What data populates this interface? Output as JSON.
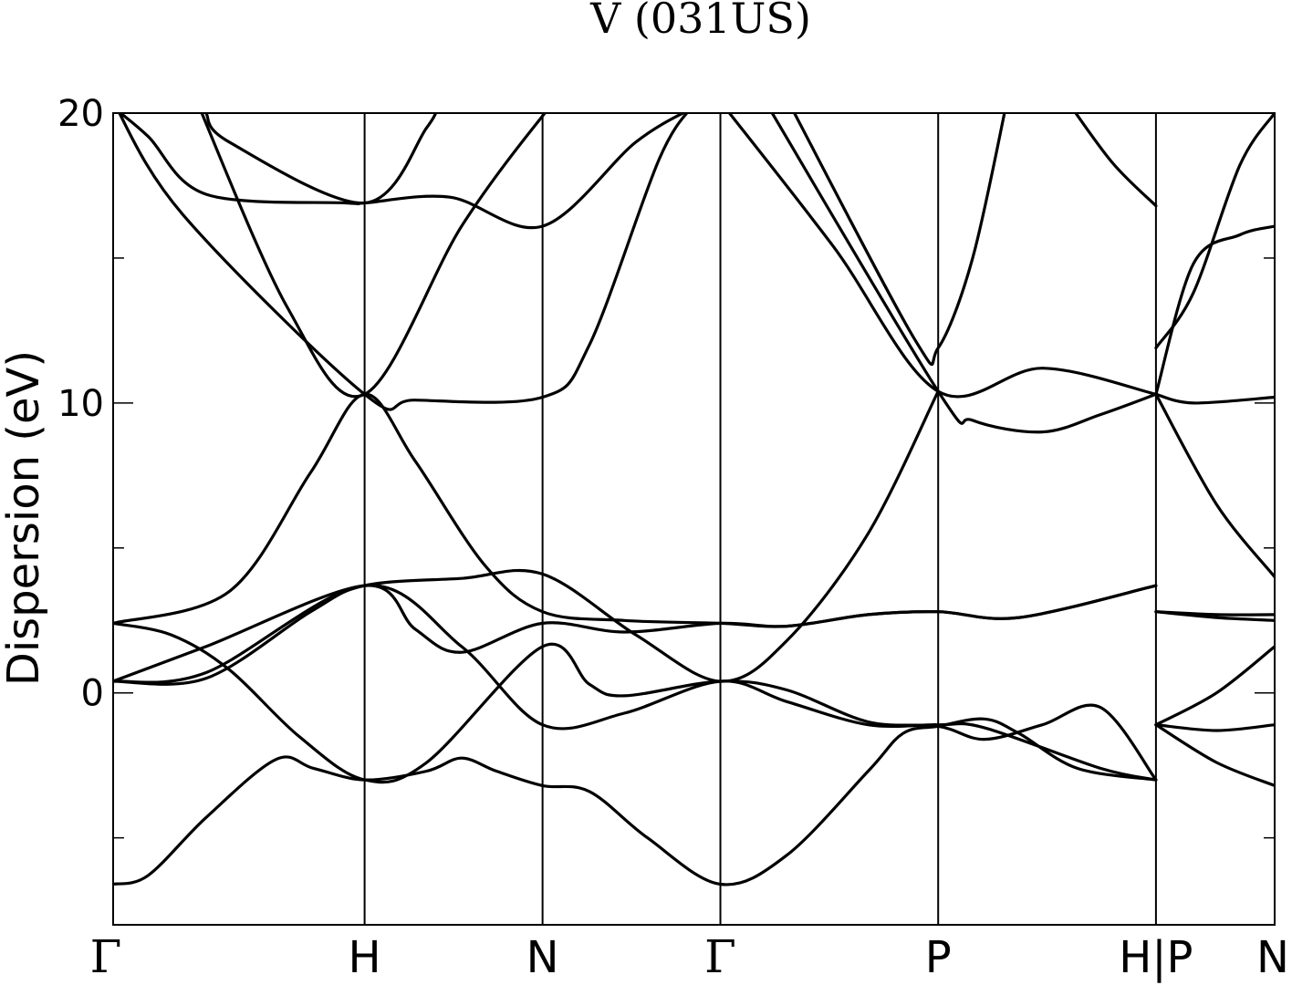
{
  "chart_data": {
    "type": "line",
    "title": "V (031US)",
    "xlabel": "",
    "ylabel": "Dispersion (eV)",
    "ylim": [
      -8,
      20
    ],
    "yticks": [
      "0",
      "10",
      "20"
    ],
    "minor_yticks": [
      -5,
      5,
      15
    ],
    "grid": false,
    "xlim": [
      0,
      1
    ],
    "kpoints": [
      {
        "label": "Γ",
        "x": 0.0
      },
      {
        "label": "H",
        "x": 0.2165
      },
      {
        "label": "N",
        "x": 0.3697
      },
      {
        "label": "Γ",
        "x": 0.5228
      },
      {
        "label": "P",
        "x": 0.7103
      },
      {
        "label": "H|P",
        "x": 0.8978
      },
      {
        "label": "N",
        "x": 1.0
      }
    ],
    "series": [
      {
        "points": [
          [
            0.0,
            -6.6
          ],
          [
            0.03,
            -6.3
          ],
          [
            0.08,
            -4.3
          ],
          [
            0.14,
            -2.3
          ],
          [
            0.1724,
            -2.6
          ],
          [
            0.2165,
            -3.0
          ],
          [
            0.27,
            -2.7
          ],
          [
            0.3,
            -2.25
          ],
          [
            0.33,
            -2.7
          ],
          [
            0.3697,
            -3.2
          ],
          [
            0.41,
            -3.4
          ],
          [
            0.46,
            -5.0
          ],
          [
            0.5228,
            -6.6
          ],
          [
            0.58,
            -5.6
          ],
          [
            0.65,
            -2.7
          ],
          [
            0.68,
            -1.4
          ],
          [
            0.7103,
            -1.15
          ],
          [
            0.75,
            -0.9
          ],
          [
            0.78,
            -1.4
          ],
          [
            0.83,
            -2.6
          ],
          [
            0.8978,
            -3.0
          ]
        ]
      },
      {
        "points": [
          [
            0.0,
            2.4
          ],
          [
            0.05,
            2.0
          ],
          [
            0.1,
            0.8
          ],
          [
            0.16,
            -1.5
          ],
          [
            0.2165,
            -3.0
          ],
          [
            0.27,
            -2.4
          ],
          [
            0.3697,
            1.6
          ],
          [
            0.41,
            0.3
          ],
          [
            0.44,
            -0.1
          ],
          [
            0.5228,
            0.4
          ],
          [
            0.58,
            0.1
          ],
          [
            0.65,
            -1.0
          ],
          [
            0.7103,
            -1.15
          ],
          [
            0.75,
            -1.6
          ],
          [
            0.8,
            -1.1
          ],
          [
            0.85,
            -0.5
          ],
          [
            0.8978,
            -3.0
          ]
        ]
      },
      {
        "points": [
          [
            0.0,
            0.4
          ],
          [
            0.08,
            1.6
          ],
          [
            0.2165,
            3.7
          ],
          [
            0.26,
            2.2
          ],
          [
            0.3,
            1.4
          ],
          [
            0.3697,
            2.4
          ],
          [
            0.44,
            2.1
          ],
          [
            0.5228,
            2.4
          ],
          [
            0.58,
            2.3
          ],
          [
            0.65,
            2.7
          ],
          [
            0.7103,
            2.8
          ],
          [
            0.78,
            2.6
          ],
          [
            0.8978,
            3.7
          ]
        ]
      },
      {
        "points": [
          [
            0.0,
            0.4
          ],
          [
            0.08,
            0.7
          ],
          [
            0.2165,
            3.7
          ],
          [
            0.3,
            1.6
          ],
          [
            0.3697,
            -1.1
          ],
          [
            0.44,
            -0.7
          ],
          [
            0.5228,
            0.4
          ],
          [
            0.58,
            -0.3
          ],
          [
            0.65,
            -1.1
          ],
          [
            0.7103,
            -1.1
          ],
          [
            0.75,
            -1.2
          ],
          [
            0.85,
            -2.6
          ],
          [
            0.8978,
            -3.0
          ]
        ]
      },
      {
        "points": [
          [
            0.0,
            2.4
          ],
          [
            0.1,
            3.5
          ],
          [
            0.17,
            7.6
          ],
          [
            0.2165,
            10.3
          ],
          [
            0.26,
            8.0
          ],
          [
            0.32,
            4.4
          ],
          [
            0.3697,
            2.8
          ],
          [
            0.44,
            2.5
          ],
          [
            0.5228,
            2.4
          ],
          [
            0.58,
            2.3
          ],
          [
            0.65,
            2.7
          ],
          [
            0.7103,
            2.8
          ],
          [
            0.78,
            2.6
          ],
          [
            0.8978,
            3.7
          ]
        ]
      },
      {
        "points": [
          [
            0.0,
            0.4
          ],
          [
            0.08,
            0.5
          ],
          [
            0.17,
            2.8
          ],
          [
            0.2165,
            3.7
          ],
          [
            0.3,
            3.95
          ],
          [
            0.3697,
            4.1
          ],
          [
            0.45,
            2.0
          ],
          [
            0.5228,
            0.4
          ],
          [
            0.58,
            1.8
          ],
          [
            0.65,
            5.5
          ],
          [
            0.7103,
            10.4
          ]
        ]
      },
      {
        "points": [
          [
            0.0,
            20.2
          ],
          [
            0.03,
            19.2
          ],
          [
            0.08,
            17.2
          ],
          [
            0.2,
            16.9
          ],
          [
            0.2165,
            16.9
          ],
          [
            0.29,
            17.1
          ],
          [
            0.3697,
            16.1
          ],
          [
            0.45,
            19.0
          ],
          [
            0.5,
            20.2
          ]
        ]
      },
      {
        "points": [
          [
            0.0,
            20.4
          ],
          [
            0.06,
            16.5
          ],
          [
            0.2165,
            10.3
          ],
          [
            0.26,
            10.1
          ],
          [
            0.3697,
            10.2
          ],
          [
            0.41,
            12.0
          ],
          [
            0.47,
            18.4
          ],
          [
            0.5,
            20.3
          ]
        ]
      },
      {
        "points": [
          [
            0.07,
            20.6
          ],
          [
            0.15,
            13.3
          ],
          [
            0.2165,
            10.3
          ],
          [
            0.3,
            16.1
          ],
          [
            0.3697,
            19.9
          ],
          [
            0.38,
            20.1
          ]
        ]
      },
      {
        "points": [
          [
            0.08,
            20.0
          ],
          [
            0.1,
            19.0
          ],
          [
            0.2165,
            16.9
          ],
          [
            0.27,
            19.5
          ],
          [
            0.28,
            20.3
          ]
        ]
      },
      {
        "points": [
          [
            0.5228,
            20.4
          ],
          [
            0.62,
            15.4
          ],
          [
            0.7103,
            10.4
          ],
          [
            0.8,
            11.2
          ],
          [
            0.8978,
            10.3
          ]
        ]
      },
      {
        "points": [
          [
            0.56,
            20.5
          ],
          [
            0.7103,
            10.4
          ],
          [
            0.74,
            9.4
          ],
          [
            0.8,
            9.0
          ],
          [
            0.85,
            9.6
          ],
          [
            0.8978,
            10.3
          ]
        ]
      },
      {
        "points": [
          [
            0.58,
            20.5
          ],
          [
            0.69,
            12.2
          ],
          [
            0.7103,
            11.9
          ],
          [
            0.74,
            15.0
          ],
          [
            0.77,
            20.5
          ]
        ]
      },
      {
        "points": [
          [
            0.82,
            20.5
          ],
          [
            0.86,
            18.3
          ],
          [
            0.8978,
            16.8
          ]
        ]
      },
      {
        "points": [
          [
            0.8978,
            11.9
          ],
          [
            0.93,
            13.8
          ],
          [
            0.97,
            18.2
          ],
          [
            1.0,
            20.0
          ]
        ]
      },
      {
        "points": [
          [
            0.8978,
            10.3
          ],
          [
            0.93,
            14.8
          ],
          [
            0.97,
            15.8
          ],
          [
            1.0,
            16.1
          ]
        ]
      },
      {
        "points": [
          [
            0.8978,
            10.3
          ],
          [
            0.93,
            10.0
          ],
          [
            1.0,
            10.2
          ]
        ]
      },
      {
        "points": [
          [
            0.8978,
            10.3
          ],
          [
            0.95,
            6.5
          ],
          [
            1.0,
            4.0
          ]
        ]
      },
      {
        "points": [
          [
            0.8978,
            2.8
          ],
          [
            0.95,
            2.7
          ],
          [
            1.0,
            2.7
          ]
        ]
      },
      {
        "points": [
          [
            0.8978,
            2.8
          ],
          [
            0.95,
            2.6
          ],
          [
            1.0,
            2.5
          ]
        ]
      },
      {
        "points": [
          [
            0.8978,
            -1.1
          ],
          [
            0.95,
            0.0
          ],
          [
            1.0,
            1.6
          ]
        ]
      },
      {
        "points": [
          [
            0.8978,
            -1.1
          ],
          [
            0.95,
            -1.3
          ],
          [
            1.0,
            -1.1
          ]
        ]
      },
      {
        "points": [
          [
            0.8978,
            -1.1
          ],
          [
            0.95,
            -2.4
          ],
          [
            1.0,
            -3.2
          ]
        ]
      }
    ]
  }
}
